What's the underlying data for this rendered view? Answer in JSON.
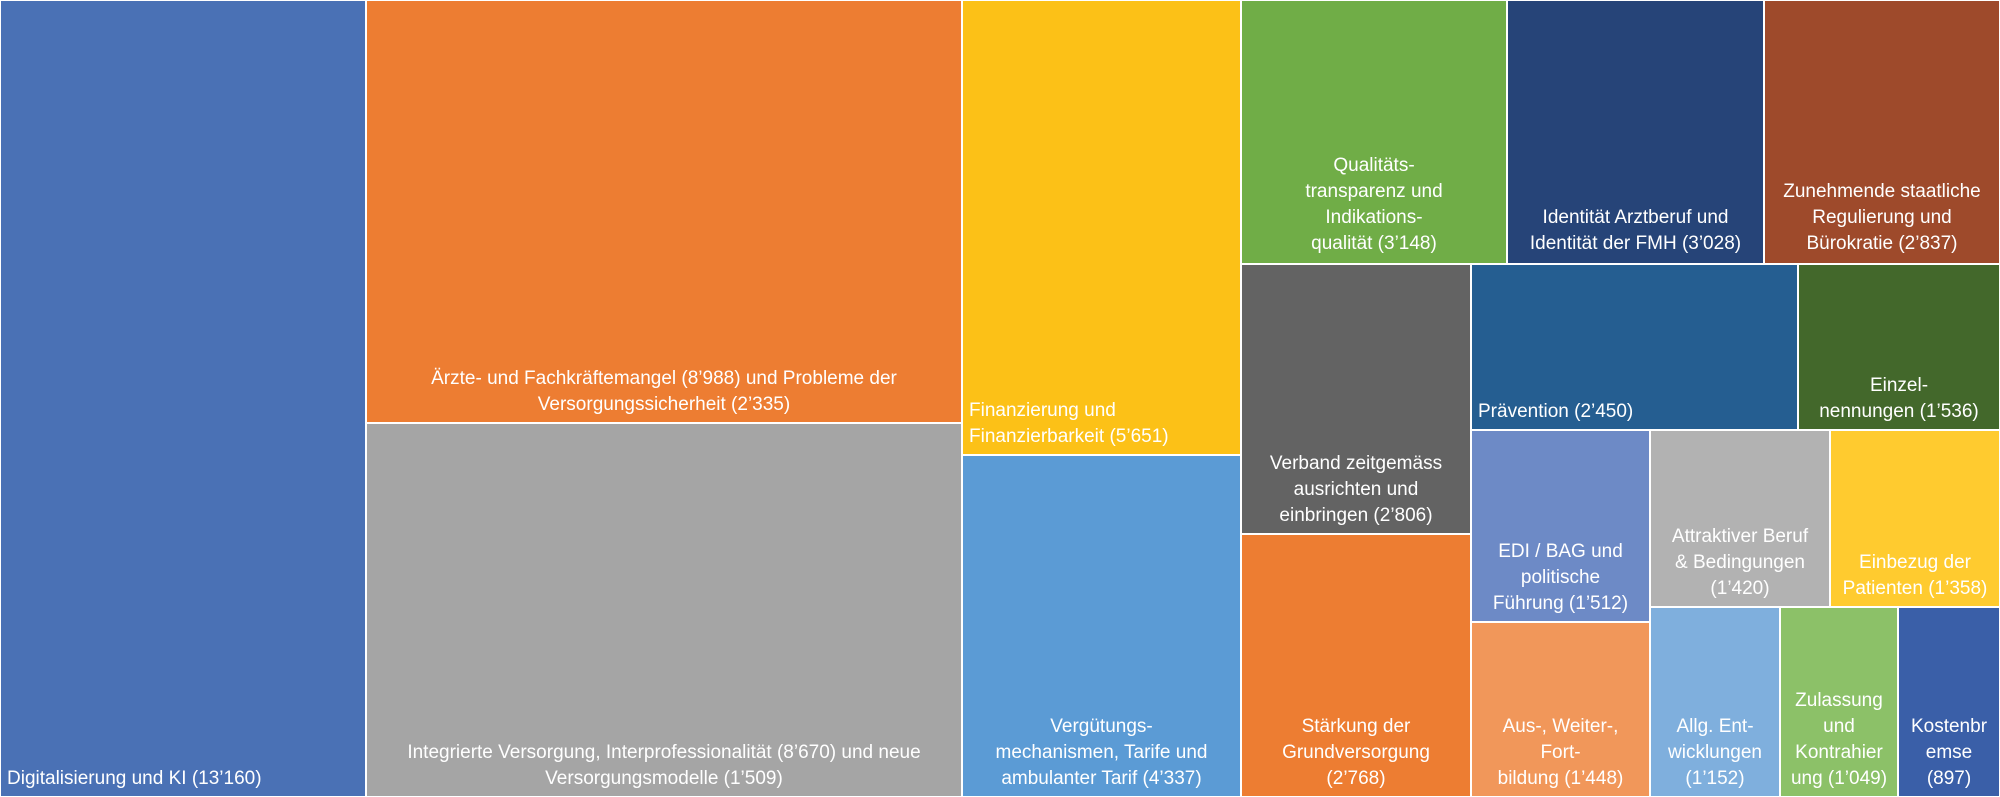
{
  "chart_data": {
    "type": "treemap",
    "title": "",
    "nodes": [
      {
        "label": "Digitalisierung und KI (13’160)",
        "value": 13160,
        "color": "#4A71B5"
      },
      {
        "label": "Ärzte- und Fachkräftemangel (8’988) und Probleme der\nVersorgungssicherheit (2’335)",
        "value": 11323,
        "color": "#ED7D32"
      },
      {
        "label": "Integrierte  Versorgung, Interprofessionalität (8’670) und neue\nVersorgungsmodelle (1’509)",
        "value": 10179,
        "color": "#A5A5A5"
      },
      {
        "label": "Finanzierung und\nFinanzierbarkeit (5’651)",
        "value": 5651,
        "color": "#FCC117"
      },
      {
        "label": "Vergütungs-\nmechanismen, Tarife und\nambulanter Tarif (4’337)",
        "value": 4337,
        "color": "#5B9BD5"
      },
      {
        "label": "Qualitäts-\ntransparenz und\nIndikations-\nqualität (3’148)",
        "value": 3148,
        "color": "#70AD47"
      },
      {
        "label": "Identität Arztberuf und\nIdentität der FMH (3’028)",
        "value": 3028,
        "color": "#264478"
      },
      {
        "label": "Zunehmende staatliche\nRegulierung und\nBürokratie (2’837)",
        "value": 2837,
        "color": "#9E4A2B"
      },
      {
        "label": "Verband zeitgemäss\nausrichten und\neinbringen (2’806)",
        "value": 2806,
        "color": "#636363"
      },
      {
        "label": "Stärkung der\nGrundversorgung\n(2’768)",
        "value": 2768,
        "color": "#ED7D32"
      },
      {
        "label": "Prävention (2’450)",
        "value": 2450,
        "color": "#255E91"
      },
      {
        "label": "Einzel-\nnennungen (1’536)",
        "value": 1536,
        "color": "#43682B"
      },
      {
        "label": "EDI / BAG und\npolitische\nFührung (1’512)",
        "value": 1512,
        "color": "#6D8AC6"
      },
      {
        "label": "Attraktiver  Beruf\n& Bedingungen\n(1’420)",
        "value": 1420,
        "color": "#B2B2B2"
      },
      {
        "label": "Einbezug der\nPatienten (1’358)",
        "value": 1358,
        "color": "#FFCB2F"
      },
      {
        "label": "Aus-, Weiter-,\nFort-\nbildung (1’448)",
        "value": 1448,
        "color": "#F1975A"
      },
      {
        "label": "Allg. Ent-\nwicklungen\n(1’152)",
        "value": 1152,
        "color": "#7FAFDD"
      },
      {
        "label": "Zulassung\nund\nKontrahier\nung (1’049)",
        "value": 1049,
        "color": "#8CC168"
      },
      {
        "label": "Kostenbr\nemse\n(897)",
        "value": 897,
        "color": "#3A5FA8"
      }
    ]
  }
}
